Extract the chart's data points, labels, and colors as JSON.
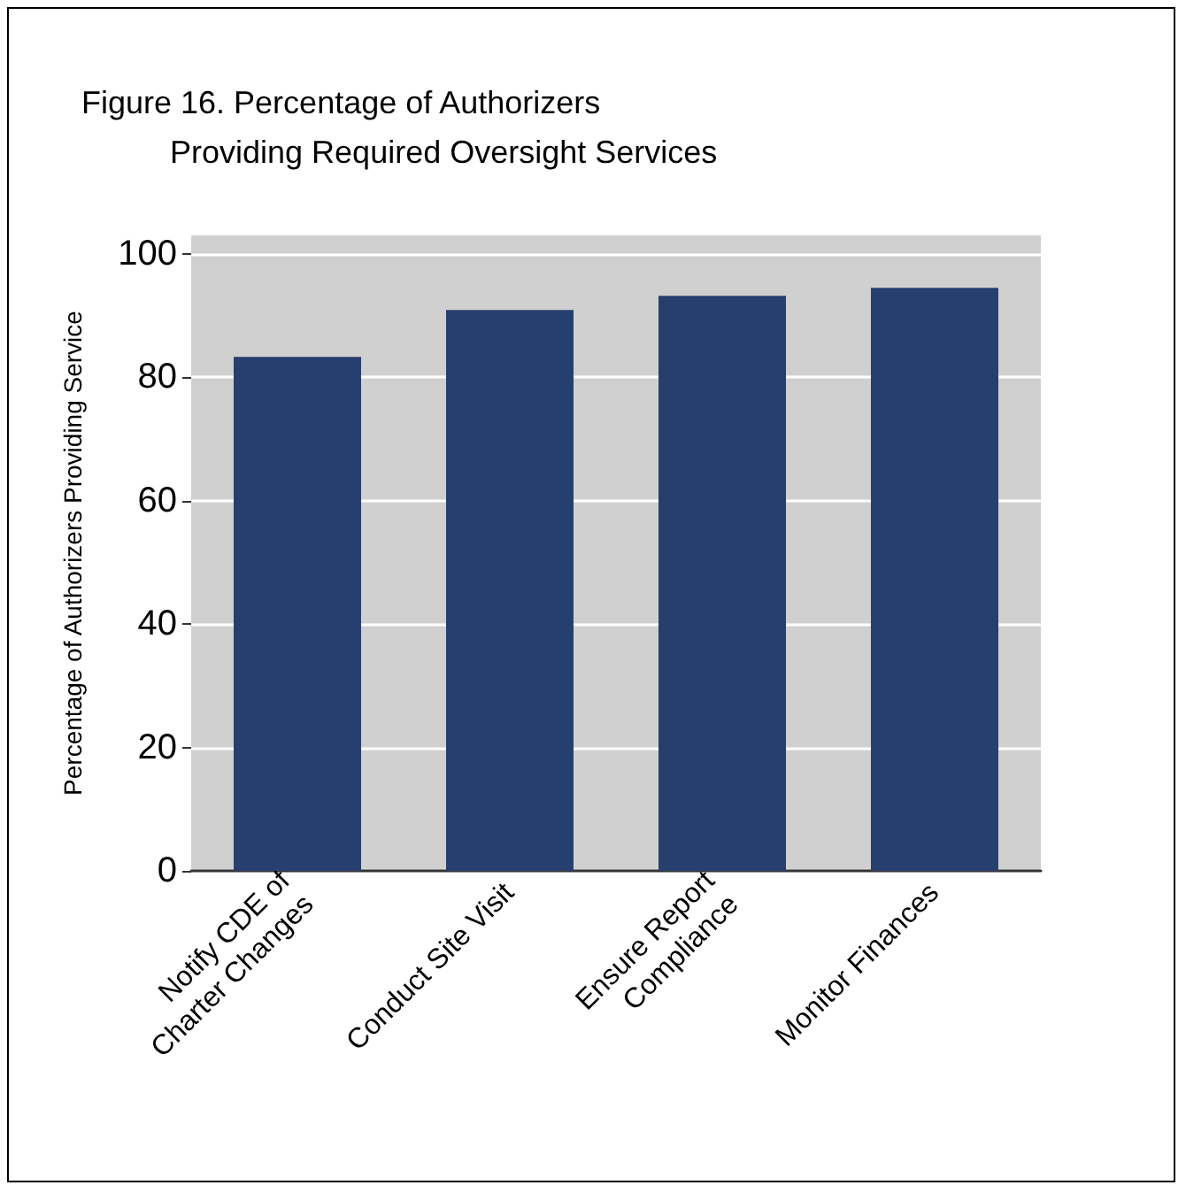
{
  "chart_data": {
    "type": "bar",
    "title": "Figure 16. Percentage of Authorizers\n          Providing Required Oversight Services",
    "ylabel": "Percentage of Authorizers Providing Service",
    "categories": [
      "Notify CDE of\nCharter Changes",
      "Conduct Site Visit",
      "Ensure Report\nCompliance",
      "Monitor Finances"
    ],
    "values": [
      83.3,
      90.9,
      93.2,
      94.5
    ],
    "color": "#273f6e",
    "ylim": [
      0,
      103
    ],
    "yticks": [
      0,
      20,
      40,
      60,
      80,
      100
    ],
    "grid": "y"
  }
}
